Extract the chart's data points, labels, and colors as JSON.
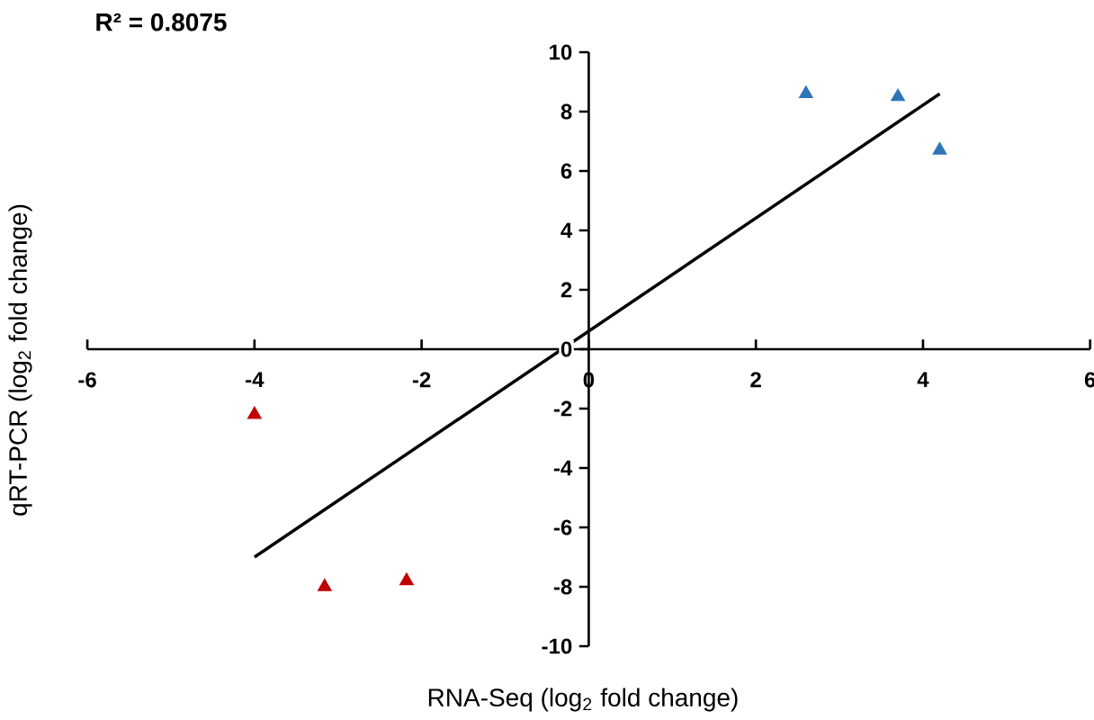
{
  "chart_data": {
    "type": "scatter",
    "xlabel": "RNA-Seq (log$_{2}$ fold change)",
    "ylabel": "qRT-PCR (log$_{2}$ fold change)",
    "annotations": [
      "R² = 0.8075"
    ],
    "xlim": [
      -6,
      6
    ],
    "ylim": [
      -10,
      10
    ],
    "xticks": [
      -6,
      -4,
      -2,
      0,
      2,
      4,
      6
    ],
    "yticks": [
      -10,
      -8,
      -6,
      -4,
      -2,
      0,
      2,
      4,
      6,
      8,
      10
    ],
    "marker": "triangle",
    "series": [
      {
        "color": "#c00000",
        "x": [
          -4.0,
          -3.16,
          -2.18
        ],
        "values": [
          -2.2,
          -8.0,
          -7.8
        ]
      },
      {
        "color": "#2e75b6",
        "x": [
          2.6,
          3.7,
          4.2
        ],
        "values": [
          8.6,
          8.5,
          6.7
        ]
      },
      {
        "type": "line",
        "color": "#000000",
        "marker": "none",
        "x": [
          -4.0,
          4.2
        ],
        "values": [
          -7.0,
          8.6
        ]
      }
    ]
  }
}
